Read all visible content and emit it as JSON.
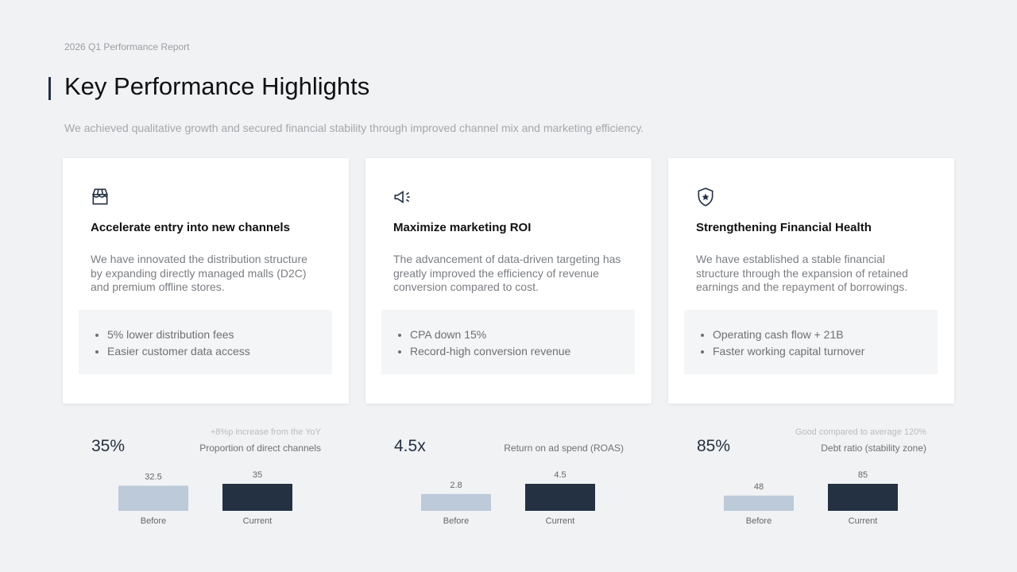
{
  "header": {
    "kicker": "2026 Q1 Performance Report",
    "title": "Key Performance Highlights",
    "subtitle": "We achieved qualitative growth and secured financial stability through improved channel mix and marketing efficiency."
  },
  "cards": [
    {
      "title": "Accelerate entry into new channels",
      "body": "We have innovated the distribution structure by expanding directly managed malls (D2C) and premium offline stores.",
      "bullets": [
        "5% lower distribution fees",
        "Easier customer data access"
      ]
    },
    {
      "title": "Maximize marketing ROI",
      "body": "The advancement of data-driven targeting has greatly improved the efficiency of revenue conversion compared to cost.",
      "bullets": [
        "CPA down 15%",
        "Record-high conversion revenue"
      ]
    },
    {
      "title": "Strengthening Financial Health",
      "body": "We have established a stable financial structure through the expansion of retained earnings and the repayment of borrowings.",
      "bullets": [
        "Operating cash flow + 21B",
        "Faster working capital turnover"
      ]
    }
  ],
  "metrics": [
    {
      "value": "35%",
      "note": "+8%p increase from the YoY",
      "label": "Proportion of direct channels",
      "chart": {
        "type": "bar",
        "categories": [
          "Before",
          "Current"
        ],
        "values": [
          32.5,
          35
        ],
        "colors": [
          "#bccada",
          "#243142"
        ]
      }
    },
    {
      "value": "4.5x",
      "label": "Return on ad spend (ROAS)",
      "chart": {
        "type": "bar",
        "categories": [
          "Before",
          "Current"
        ],
        "values": [
          2.8,
          4.5
        ],
        "colors": [
          "#bccada",
          "#243142"
        ]
      }
    },
    {
      "value": "85%",
      "note": "Good compared to average 120%",
      "label": "Debt ratio (stability zone)",
      "chart": {
        "type": "bar",
        "categories": [
          "Before",
          "Current"
        ],
        "values": [
          48,
          85
        ],
        "colors": [
          "#bccada",
          "#243142"
        ]
      }
    }
  ]
}
